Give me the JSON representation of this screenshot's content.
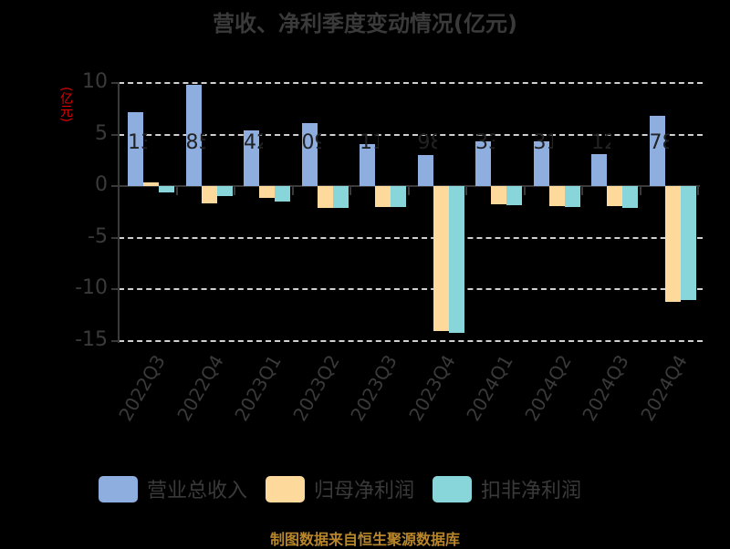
{
  "chart_data": {
    "type": "bar",
    "title": "营收、净利季度变动情况(亿元)",
    "ylabel": "(亿元)",
    "xlabel": "",
    "ylim": [
      -15,
      10
    ],
    "yticks": [
      10,
      5,
      0,
      -5,
      -10,
      -15
    ],
    "grid": true,
    "legend_position": "bottom",
    "categories": [
      "2022Q3",
      "2022Q4",
      "2023Q1",
      "2023Q2",
      "2023Q3",
      "2023Q4",
      "2024Q1",
      "2024Q2",
      "2024Q3",
      "2024Q4"
    ],
    "series": [
      {
        "name": "营业总收入",
        "color": "#8eaee0",
        "values": [
          7.13,
          9.85,
          5.42,
          6.09,
          4.11,
          2.98,
          4.33,
          4.31,
          3.12,
          6.78
        ],
        "visible_labels": [
          "13",
          "85",
          "42",
          "09",
          "11",
          "98",
          "33",
          "31",
          "12",
          "78"
        ]
      },
      {
        "name": "归母净利润",
        "color": "#fdd99b",
        "values": [
          0.35,
          -1.65,
          -1.15,
          -2.1,
          -2.0,
          -14.07,
          -1.75,
          -1.95,
          -1.95,
          -11.24
        ]
      },
      {
        "name": "扣非净利润",
        "color": "#88d6da",
        "values": [
          -0.6,
          -0.97,
          -1.5,
          -2.1,
          -2.0,
          -14.25,
          -1.85,
          -2.0,
          -2.1,
          -11.06
        ]
      }
    ]
  },
  "header": {
    "title": "营收、净利季度变动情况(亿元)",
    "yunit": "(亿元)"
  },
  "legend": [
    "营业总收入",
    "归母净利润",
    "扣非净利润"
  ],
  "footer": "制图数据来自恒生聚源数据库"
}
